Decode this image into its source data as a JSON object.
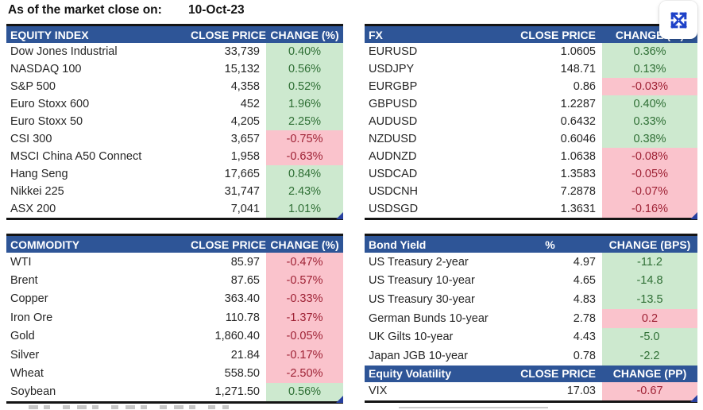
{
  "header": {
    "as_of_label": "As of the market close on:",
    "date": "10-Oct-23"
  },
  "controls": {
    "expand_icon": "expand-arrows"
  },
  "colors": {
    "header_blue": "#2e5597",
    "positive_bg": "#cde9cf",
    "positive_text": "#2f6f35",
    "negative_bg": "#fac3cc",
    "negative_text": "#9e2134"
  },
  "tables": {
    "equity": {
      "title": "EQUITY INDEX",
      "price_header": "CLOSE PRICE",
      "change_header": "CHANGE (%)",
      "rows": [
        {
          "name": "Dow Jones Industrial",
          "price": "33,739",
          "change": "0.40%",
          "tone": "green"
        },
        {
          "name": "NASDAQ 100",
          "price": "15,132",
          "change": "0.56%",
          "tone": "green"
        },
        {
          "name": "S&P 500",
          "price": "4,358",
          "change": "0.52%",
          "tone": "green"
        },
        {
          "name": "Euro Stoxx 600",
          "price": "452",
          "change": "1.96%",
          "tone": "green"
        },
        {
          "name": "Euro Stoxx 50",
          "price": "4,205",
          "change": "2.25%",
          "tone": "green"
        },
        {
          "name": "CSI 300",
          "price": "3,657",
          "change": "-0.75%",
          "tone": "red"
        },
        {
          "name": "MSCI China A50 Connect",
          "price": "1,958",
          "change": "-0.63%",
          "tone": "red"
        },
        {
          "name": "Hang Seng",
          "price": "17,665",
          "change": "0.84%",
          "tone": "green"
        },
        {
          "name": "Nikkei 225",
          "price": "31,747",
          "change": "2.43%",
          "tone": "green"
        },
        {
          "name": "ASX 200",
          "price": "7,041",
          "change": "1.01%",
          "tone": "green"
        }
      ]
    },
    "fx": {
      "title": "FX",
      "price_header": "CLOSE PRICE",
      "change_header": "CHANGE (%)",
      "rows": [
        {
          "name": "EURUSD",
          "price": "1.0605",
          "change": "0.36%",
          "tone": "green"
        },
        {
          "name": "USDJPY",
          "price": "148.71",
          "change": "0.13%",
          "tone": "green"
        },
        {
          "name": "EURGBP",
          "price": "0.86",
          "change": "-0.03%",
          "tone": "red"
        },
        {
          "name": "GBPUSD",
          "price": "1.2287",
          "change": "0.40%",
          "tone": "green"
        },
        {
          "name": "AUDUSD",
          "price": "0.6432",
          "change": "0.33%",
          "tone": "green"
        },
        {
          "name": "NZDUSD",
          "price": "0.6046",
          "change": "0.38%",
          "tone": "green"
        },
        {
          "name": "AUDNZD",
          "price": "1.0638",
          "change": "-0.08%",
          "tone": "red"
        },
        {
          "name": "USDCAD",
          "price": "1.3583",
          "change": "-0.05%",
          "tone": "red"
        },
        {
          "name": "USDCNH",
          "price": "7.2878",
          "change": "-0.07%",
          "tone": "red"
        },
        {
          "name": "USDSGD",
          "price": "1.3631",
          "change": "-0.16%",
          "tone": "red"
        }
      ]
    },
    "commodity": {
      "title": "COMMODITY",
      "price_header": "CLOSE PRICE",
      "change_header": "CHANGE (%)",
      "rows": [
        {
          "name": "WTI",
          "price": "85.97",
          "change": "-0.47%",
          "tone": "red"
        },
        {
          "name": "Brent",
          "price": "87.65",
          "change": "-0.57%",
          "tone": "red"
        },
        {
          "name": "Copper",
          "price": "363.40",
          "change": "-0.33%",
          "tone": "red"
        },
        {
          "name": "Iron Ore",
          "price": "110.78",
          "change": "-1.37%",
          "tone": "red"
        },
        {
          "name": "Gold",
          "price": "1,860.40",
          "change": "-0.05%",
          "tone": "red"
        },
        {
          "name": "Silver",
          "price": "21.84",
          "change": "-0.17%",
          "tone": "red"
        },
        {
          "name": "Wheat",
          "price": "558.50",
          "change": "-2.50%",
          "tone": "red"
        },
        {
          "name": "Soybean",
          "price": "1,271.50",
          "change": "0.56%",
          "tone": "green"
        }
      ]
    },
    "bond": {
      "title": "Bond Yield",
      "price_header": "%",
      "change_header": "CHANGE (BPS)",
      "rows": [
        {
          "name": "US Treasury 2-year",
          "price": "4.97",
          "change": "-11.2",
          "tone": "green"
        },
        {
          "name": "US Treasury 10-year",
          "price": "4.65",
          "change": "-14.8",
          "tone": "green"
        },
        {
          "name": "US Treasury 30-year",
          "price": "4.83",
          "change": "-13.5",
          "tone": "green"
        },
        {
          "name": "German Bunds 10-year",
          "price": "2.78",
          "change": "0.2",
          "tone": "red"
        },
        {
          "name": "UK Gilts 10-year",
          "price": "4.43",
          "change": "-5.0",
          "tone": "green"
        },
        {
          "name": "Japan JGB 10-year",
          "price": "0.78",
          "change": "-2.2",
          "tone": "green"
        }
      ]
    },
    "volatility": {
      "title": "Equity Volatility",
      "price_header": "CLOSE PRICE",
      "change_header": "CHANGE (PP)",
      "rows": [
        {
          "name": "VIX",
          "price": "17.03",
          "change": "-0.67",
          "tone": "red"
        }
      ]
    }
  }
}
